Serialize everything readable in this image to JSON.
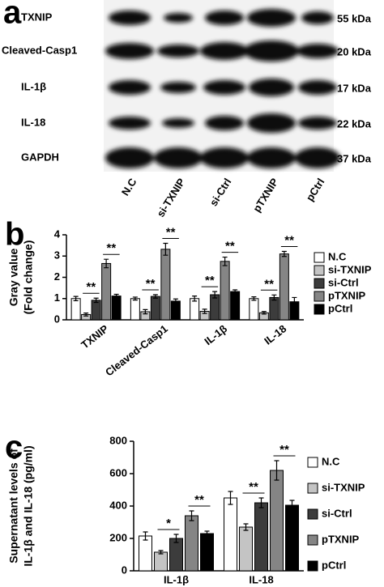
{
  "blot": {
    "panel_label": "a",
    "proteins": [
      {
        "name": "TXNIP",
        "size": "55 kDa"
      },
      {
        "name": "Cleaved-Casp1",
        "size": "20 kDa"
      },
      {
        "name": "IL-1β",
        "size": "17 kDa"
      },
      {
        "name": "IL-18",
        "size": "22 kDa"
      },
      {
        "name": "GAPDH",
        "size": "37 kDa"
      }
    ],
    "lanes": [
      "N.C",
      "si-TXNIP",
      "si-Ctrl",
      "pTXNIP",
      "pCtrl"
    ]
  },
  "chart_data": [
    {
      "type": "bar",
      "panel_label": "b",
      "ylabel": [
        "Gray value",
        "(Fold change)"
      ],
      "categories": [
        "TXNIP",
        "Cleaved-Casp1",
        "IL-1β",
        "IL-18"
      ],
      "series": [
        {
          "name": "N.C",
          "color": "#ffffff",
          "values": [
            1.0,
            1.0,
            1.0,
            1.0
          ],
          "errors": [
            0.1,
            0.07,
            0.12,
            0.08
          ]
        },
        {
          "name": "si-TXNIP",
          "color": "#c4c4c4",
          "values": [
            0.25,
            0.38,
            0.4,
            0.33
          ],
          "errors": [
            0.07,
            0.1,
            0.1,
            0.06
          ]
        },
        {
          "name": "si-Ctrl",
          "color": "#3c3c3c",
          "values": [
            0.92,
            1.1,
            1.18,
            1.05
          ],
          "errors": [
            0.1,
            0.08,
            0.15,
            0.12
          ]
        },
        {
          "name": "pTXNIP",
          "color": "#858585",
          "values": [
            2.65,
            3.32,
            2.75,
            3.1
          ],
          "errors": [
            0.2,
            0.28,
            0.2,
            0.12
          ]
        },
        {
          "name": "pCtrl",
          "color": "#000000",
          "values": [
            1.12,
            0.88,
            1.33,
            0.85
          ],
          "errors": [
            0.08,
            0.1,
            0.08,
            0.2
          ]
        }
      ],
      "annotations": [
        {
          "text": "**",
          "category": 0,
          "from": 1,
          "to": 2
        },
        {
          "text": "**",
          "category": 0,
          "from": 3,
          "to": 4
        },
        {
          "text": "**",
          "category": 1,
          "from": 1,
          "to": 2
        },
        {
          "text": "**",
          "category": 1,
          "from": 3,
          "to": 4
        },
        {
          "text": "**",
          "category": 2,
          "from": 1,
          "to": 2
        },
        {
          "text": "**",
          "category": 2,
          "from": 3,
          "to": 4
        },
        {
          "text": "**",
          "category": 3,
          "from": 1,
          "to": 2
        },
        {
          "text": "**",
          "category": 3,
          "from": 3,
          "to": 4
        }
      ],
      "ylim": [
        0,
        4
      ],
      "yticks": [
        0,
        1,
        2,
        3,
        4
      ]
    },
    {
      "type": "bar",
      "panel_label": "c",
      "ylabel": [
        "Supernatant levels of",
        "IL-1β and IL-18 (pg/ml)"
      ],
      "categories": [
        "IL-1β",
        "IL-18"
      ],
      "series": [
        {
          "name": "N.C",
          "color": "#ffffff",
          "values": [
            215,
            450
          ],
          "errors": [
            25,
            40
          ]
        },
        {
          "name": "si-TXNIP",
          "color": "#c4c4c4",
          "values": [
            115,
            270
          ],
          "errors": [
            10,
            20
          ]
        },
        {
          "name": "si-Ctrl",
          "color": "#3c3c3c",
          "values": [
            200,
            420
          ],
          "errors": [
            25,
            30
          ]
        },
        {
          "name": "pTXNIP",
          "color": "#858585",
          "values": [
            340,
            620
          ],
          "errors": [
            30,
            60
          ]
        },
        {
          "name": "pCtrl",
          "color": "#000000",
          "values": [
            230,
            405
          ],
          "errors": [
            15,
            30
          ]
        }
      ],
      "annotations": [
        {
          "text": "*",
          "category": 0,
          "from": 1,
          "to": 2
        },
        {
          "text": "**",
          "category": 0,
          "from": 3,
          "to": 4
        },
        {
          "text": "**",
          "category": 1,
          "from": 1,
          "to": 2
        },
        {
          "text": "**",
          "category": 1,
          "from": 3,
          "to": 4
        }
      ],
      "ylim": [
        0,
        800
      ],
      "yticks": [
        0,
        200,
        400,
        600,
        800
      ]
    }
  ]
}
